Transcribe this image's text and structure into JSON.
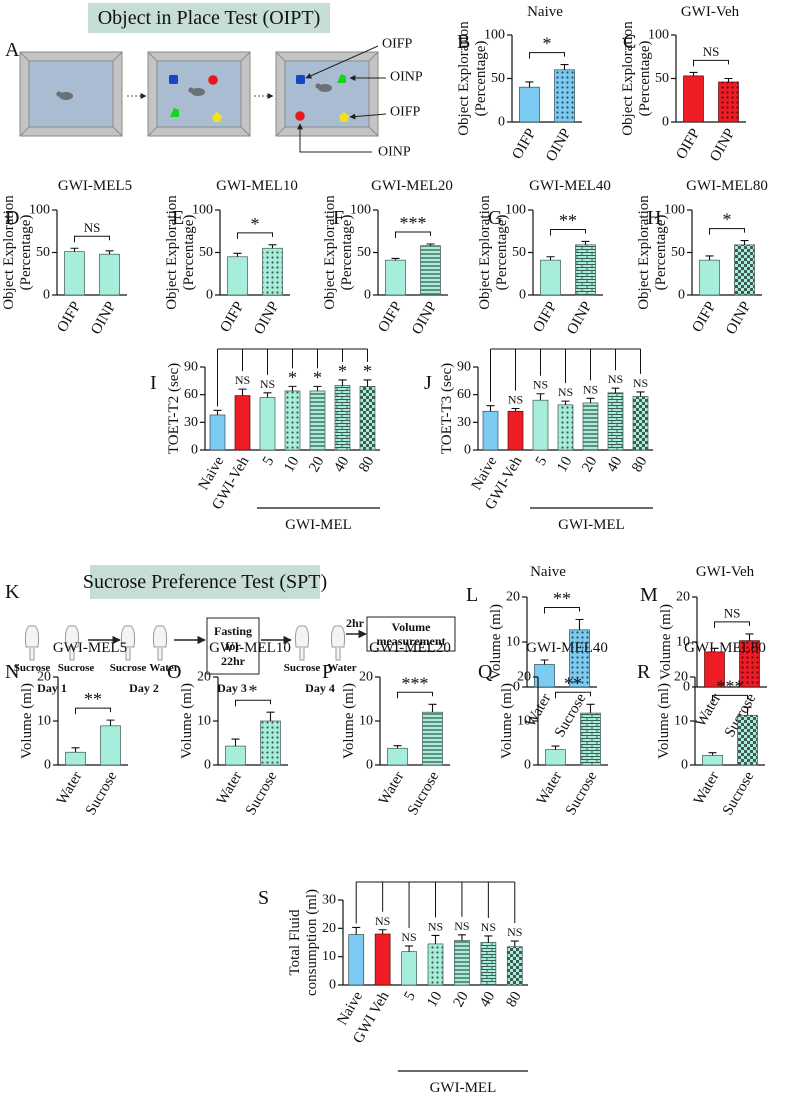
{
  "diagrams": {
    "oipt": {
      "panel": "A",
      "title": "Object in Place Test (OIPT)",
      "labels": [
        "OIFP",
        "OINP",
        "OIFP",
        "OINP"
      ]
    },
    "spt": {
      "panel": "K",
      "title": "Sucrose Preference Test (SPT)",
      "days": [
        {
          "label": "Day 1",
          "bottles": [
            "Sucrose",
            "Sucrose"
          ]
        },
        {
          "label": "Day 2",
          "bottles": [
            "Sucrose",
            "Water"
          ]
        },
        {
          "label": "Day 3",
          "box": [
            "Fasting",
            "for",
            "22hr"
          ]
        },
        {
          "label": "Day 4",
          "bottles": [
            "Sucrose",
            "Water"
          ]
        }
      ],
      "arrow_label": "2hr",
      "end_box": [
        "Volume",
        "measurement"
      ]
    }
  },
  "chart_data": [
    {
      "type": "bar",
      "panel": "B",
      "title": "Naive",
      "ylabel": [
        "Object Exploration",
        "(Percentage)"
      ],
      "categories": [
        "OIFP",
        "OINP"
      ],
      "values": [
        40,
        60
      ],
      "errors": [
        6,
        6
      ],
      "colors": [
        "#7ccbf2",
        "#7ccbf2"
      ],
      "patterns": [
        "none",
        "dots"
      ],
      "ylim": [
        0,
        100
      ],
      "yticks": [
        0,
        50,
        100
      ],
      "significance": "*"
    },
    {
      "type": "bar",
      "panel": "C",
      "title": "GWI-Veh",
      "ylabel": [
        "Object Exploration",
        "(Percentage)"
      ],
      "categories": [
        "OIFP",
        "OINP"
      ],
      "values": [
        53,
        46
      ],
      "errors": [
        4,
        4
      ],
      "colors": [
        "#ee1c25",
        "#ee1c25"
      ],
      "patterns": [
        "none",
        "dots"
      ],
      "ylim": [
        0,
        100
      ],
      "yticks": [
        0,
        50,
        100
      ],
      "significance": "NS"
    },
    {
      "type": "bar",
      "panel": "D",
      "title": "GWI-MEL5",
      "ylabel": [
        "Object Exploration",
        "(Percentage)"
      ],
      "categories": [
        "OIFP",
        "OINP"
      ],
      "values": [
        51,
        48
      ],
      "errors": [
        4,
        4
      ],
      "colors": [
        "#a6eedb",
        "#a6eedb"
      ],
      "patterns": [
        "none",
        "none"
      ],
      "ylim": [
        0,
        100
      ],
      "yticks": [
        0,
        50,
        100
      ],
      "significance": "NS"
    },
    {
      "type": "bar",
      "panel": "E",
      "title": "GWI-MEL10",
      "ylabel": [
        "Object Exploration",
        "(Percentage)"
      ],
      "categories": [
        "OIFP",
        "OINP"
      ],
      "values": [
        45,
        55
      ],
      "errors": [
        4,
        4
      ],
      "colors": [
        "#a6eedb",
        "#a6eedb"
      ],
      "patterns": [
        "none",
        "dots"
      ],
      "ylim": [
        0,
        100
      ],
      "yticks": [
        0,
        50,
        100
      ],
      "significance": "*"
    },
    {
      "type": "bar",
      "panel": "F",
      "title": "GWI-MEL20",
      "ylabel": [
        "Object Exploration",
        "(Percentage)"
      ],
      "categories": [
        "OIFP",
        "OINP"
      ],
      "values": [
        41,
        58
      ],
      "errors": [
        2,
        2
      ],
      "colors": [
        "#a6eedb",
        "#a6eedb"
      ],
      "patterns": [
        "none",
        "stripes"
      ],
      "ylim": [
        0,
        100
      ],
      "yticks": [
        0,
        50,
        100
      ],
      "significance": "***"
    },
    {
      "type": "bar",
      "panel": "G",
      "title": "GWI-MEL40",
      "ylabel": [
        "Object Exploration",
        "(Percentage)"
      ],
      "categories": [
        "OIFP",
        "OINP"
      ],
      "values": [
        41,
        59
      ],
      "errors": [
        4,
        4
      ],
      "colors": [
        "#a6eedb",
        "#a6eedb"
      ],
      "patterns": [
        "none",
        "bricks"
      ],
      "ylim": [
        0,
        100
      ],
      "yticks": [
        0,
        50,
        100
      ],
      "significance": "**"
    },
    {
      "type": "bar",
      "panel": "H",
      "title": "GWI-MEL80",
      "ylabel": [
        "Object Exploration",
        "(Percentage)"
      ],
      "categories": [
        "OIFP",
        "OINP"
      ],
      "values": [
        41,
        59
      ],
      "errors": [
        5,
        5
      ],
      "colors": [
        "#a6eedb",
        "#a6eedb"
      ],
      "patterns": [
        "none",
        "checker"
      ],
      "ylim": [
        0,
        100
      ],
      "yticks": [
        0,
        50,
        100
      ],
      "significance": "*"
    },
    {
      "type": "bar",
      "panel": "I",
      "ylabel": [
        "TOET-T2 (sec)"
      ],
      "categories": [
        "Naive",
        "GWI-Veh",
        "5",
        "10",
        "20",
        "40",
        "80"
      ],
      "values": [
        38,
        59,
        57,
        64,
        64,
        70,
        69
      ],
      "errors": [
        5,
        7,
        5,
        5,
        5,
        6,
        7
      ],
      "colors": [
        "#7ccbf2",
        "#ee1c25",
        "#a6eedb",
        "#a6eedb",
        "#a6eedb",
        "#a6eedb",
        "#a6eedb"
      ],
      "patterns": [
        "none",
        "none",
        "none",
        "dots",
        "stripes",
        "bricks",
        "checker"
      ],
      "ylim": [
        0,
        90
      ],
      "yticks": [
        0,
        30,
        60,
        90
      ],
      "annotations": [
        null,
        "NS",
        "NS",
        "*",
        "*",
        "*",
        "*"
      ],
      "group_label": "GWI-MEL"
    },
    {
      "type": "bar",
      "panel": "J",
      "ylabel": [
        "TOET-T3 (sec)"
      ],
      "categories": [
        "Naive",
        "GWI-Veh",
        "5",
        "10",
        "20",
        "40",
        "80"
      ],
      "values": [
        42,
        42,
        54,
        49,
        51,
        62,
        58
      ],
      "errors": [
        6,
        3,
        7,
        4,
        5,
        5,
        5
      ],
      "colors": [
        "#7ccbf2",
        "#ee1c25",
        "#a6eedb",
        "#a6eedb",
        "#a6eedb",
        "#a6eedb",
        "#a6eedb"
      ],
      "patterns": [
        "none",
        "none",
        "none",
        "dots",
        "stripes",
        "bricks",
        "checker"
      ],
      "ylim": [
        0,
        90
      ],
      "yticks": [
        0,
        30,
        60,
        90
      ],
      "annotations": [
        null,
        "NS",
        "NS",
        "NS",
        "NS",
        "NS",
        "NS"
      ],
      "group_label": "GWI-MEL"
    },
    {
      "type": "bar",
      "panel": "L",
      "title": "Naive",
      "ylabel": [
        "Volume (ml)"
      ],
      "categories": [
        "Water",
        "Sucrose"
      ],
      "values": [
        5,
        12.7
      ],
      "errors": [
        1,
        2.3
      ],
      "colors": [
        "#7ccbf2",
        "#7ccbf2"
      ],
      "patterns": [
        "none",
        "dots"
      ],
      "ylim": [
        0,
        20
      ],
      "yticks": [
        0,
        10,
        20
      ],
      "significance": "**"
    },
    {
      "type": "bar",
      "panel": "M",
      "title": "GWI-Veh",
      "ylabel": [
        "Volume (ml)"
      ],
      "categories": [
        "Water",
        "Sucrose"
      ],
      "values": [
        7.8,
        10.3
      ],
      "errors": [
        0.8,
        1.5
      ],
      "colors": [
        "#ee1c25",
        "#ee1c25"
      ],
      "patterns": [
        "none",
        "dots"
      ],
      "ylim": [
        0,
        20
      ],
      "yticks": [
        0,
        10,
        20
      ],
      "significance": "NS"
    },
    {
      "type": "bar",
      "panel": "N",
      "title": "GWI-MEL5",
      "ylabel": [
        "Volume (ml)"
      ],
      "categories": [
        "Water",
        "Sucrose"
      ],
      "values": [
        2.9,
        8.9
      ],
      "errors": [
        1,
        1.3
      ],
      "colors": [
        "#a6eedb",
        "#a6eedb"
      ],
      "patterns": [
        "none",
        "none"
      ],
      "ylim": [
        0,
        20
      ],
      "yticks": [
        0,
        10,
        20
      ],
      "significance": "**"
    },
    {
      "type": "bar",
      "panel": "O",
      "title": "GWI-MEL10",
      "ylabel": [
        "Volume (ml)"
      ],
      "categories": [
        "Water",
        "Sucrose"
      ],
      "values": [
        4.3,
        10
      ],
      "errors": [
        1.6,
        2
      ],
      "colors": [
        "#a6eedb",
        "#a6eedb"
      ],
      "patterns": [
        "none",
        "dots"
      ],
      "ylim": [
        0,
        20
      ],
      "yticks": [
        0,
        10,
        20
      ],
      "significance": "*"
    },
    {
      "type": "bar",
      "panel": "P",
      "title": "GWI-MEL20",
      "ylabel": [
        "Volume (ml)"
      ],
      "categories": [
        "Water",
        "Sucrose"
      ],
      "values": [
        3.8,
        12
      ],
      "errors": [
        0.6,
        1.8
      ],
      "colors": [
        "#a6eedb",
        "#a6eedb"
      ],
      "patterns": [
        "none",
        "stripes"
      ],
      "ylim": [
        0,
        20
      ],
      "yticks": [
        0,
        10,
        20
      ],
      "significance": "***"
    },
    {
      "type": "bar",
      "panel": "Q",
      "title": "GWI-MEL40",
      "ylabel": [
        "Volume (ml)"
      ],
      "categories": [
        "Water",
        "Sucrose"
      ],
      "values": [
        3.5,
        11.8
      ],
      "errors": [
        0.8,
        2
      ],
      "colors": [
        "#a6eedb",
        "#a6eedb"
      ],
      "patterns": [
        "none",
        "bricks"
      ],
      "ylim": [
        0,
        20
      ],
      "yticks": [
        0,
        10,
        20
      ],
      "significance": "**"
    },
    {
      "type": "bar",
      "panel": "R",
      "title": "GWI-MEL80",
      "ylabel": [
        "Volume (ml)"
      ],
      "categories": [
        "Water",
        "Sucrose"
      ],
      "values": [
        2.2,
        11.3
      ],
      "errors": [
        0.6,
        1.8
      ],
      "colors": [
        "#a6eedb",
        "#a6eedb"
      ],
      "patterns": [
        "none",
        "checker"
      ],
      "ylim": [
        0,
        20
      ],
      "yticks": [
        0,
        10,
        20
      ],
      "significance": "***"
    },
    {
      "type": "bar",
      "panel": "S",
      "ylabel": [
        "Total Fluid",
        "consumption (ml)"
      ],
      "categories": [
        "Naive",
        "GWI Veh",
        "5",
        "10",
        "20",
        "40",
        "80"
      ],
      "values": [
        17.8,
        18,
        11.8,
        14.5,
        15.7,
        15,
        13.5
      ],
      "errors": [
        2.5,
        1.5,
        2,
        3,
        2,
        2.3,
        2
      ],
      "colors": [
        "#7ccbf2",
        "#ee1c25",
        "#a6eedb",
        "#a6eedb",
        "#a6eedb",
        "#a6eedb",
        "#a6eedb"
      ],
      "patterns": [
        "none",
        "none",
        "none",
        "dots",
        "stripes",
        "bricks",
        "checker"
      ],
      "ylim": [
        0,
        30
      ],
      "yticks": [
        0,
        10,
        20,
        30
      ],
      "annotations": [
        null,
        "NS",
        "NS",
        "NS",
        "NS",
        "NS",
        "NS"
      ],
      "group_label": "GWI-MEL"
    }
  ]
}
